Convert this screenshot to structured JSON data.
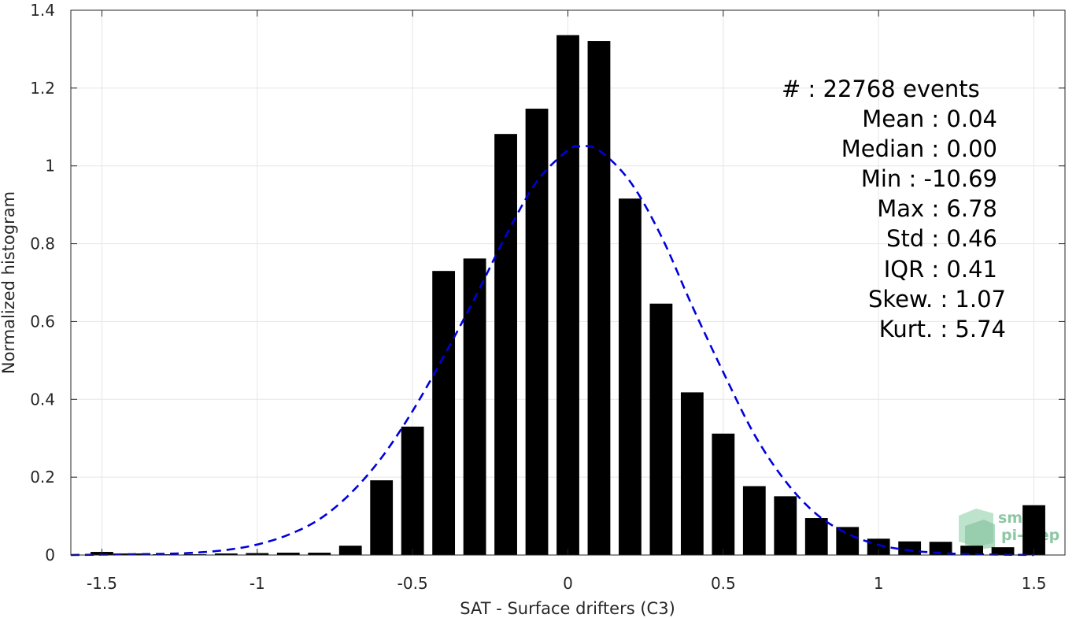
{
  "chart_data": {
    "type": "bar",
    "xlabel": "SAT - Surface drifters (C3)",
    "ylabel": "Normalized histogram",
    "xlim": [
      -1.6,
      1.6
    ],
    "ylim": [
      0,
      1.4
    ],
    "xticks": [
      "-1.5",
      "-1",
      "-0.5",
      "0",
      "0.5",
      "1",
      "1.5"
    ],
    "yticks": [
      "0",
      "0.2",
      "0.4",
      "0.6",
      "0.8",
      "1",
      "1.2",
      "1.4"
    ],
    "grid": true,
    "bar_color": "#000000",
    "curve_color": "#0000dd",
    "series": [
      {
        "type": "bar",
        "x": [
          -1.5,
          -1.4,
          -1.3,
          -1.2,
          -1.1,
          -1.0,
          -0.9,
          -0.8,
          -0.7,
          -0.6,
          -0.5,
          -0.4,
          -0.3,
          -0.2,
          -0.1,
          0.0,
          0.1,
          0.2,
          0.3,
          0.4,
          0.5,
          0.6,
          0.7,
          0.8,
          0.9,
          1.0,
          1.1,
          1.2,
          1.3,
          1.4,
          1.5
        ],
        "values": [
          0.008,
          0.004,
          0.002,
          0.002,
          0.004,
          0.005,
          0.006,
          0.006,
          0.024,
          0.192,
          0.33,
          0.73,
          0.762,
          1.082,
          1.147,
          1.336,
          1.321,
          0.916,
          0.646,
          0.418,
          0.312,
          0.177,
          0.151,
          0.095,
          0.072,
          0.042,
          0.035,
          0.034,
          0.024,
          0.02,
          0.128
        ]
      },
      {
        "type": "line",
        "style": "dashed",
        "x": [
          -1.6,
          -1.5,
          -1.4,
          -1.3,
          -1.2,
          -1.1,
          -1.0,
          -0.9,
          -0.8,
          -0.7,
          -0.6,
          -0.5,
          -0.4,
          -0.3,
          -0.2,
          -0.1,
          0.0,
          0.04,
          0.1,
          0.2,
          0.3,
          0.4,
          0.5,
          0.6,
          0.7,
          0.8,
          0.9,
          1.0,
          1.1,
          1.2,
          1.3,
          1.4,
          1.5
        ],
        "values": [
          0.0,
          0.001,
          0.002,
          0.003,
          0.006,
          0.013,
          0.027,
          0.052,
          0.092,
          0.158,
          0.25,
          0.37,
          0.51,
          0.66,
          0.82,
          0.96,
          1.04,
          1.05,
          1.04,
          0.96,
          0.82,
          0.64,
          0.47,
          0.31,
          0.19,
          0.105,
          0.055,
          0.026,
          0.012,
          0.005,
          0.002,
          0.001,
          0.0
        ]
      }
    ],
    "annotations": [
      "#  : 22768 events",
      "Mean : 0.04",
      "Median : 0.00",
      "Min : -10.69",
      "Max : 6.78",
      "Std : 0.46",
      "IQR : 0.41",
      "Skew. : 1.07",
      "Kurt. : 5.74"
    ],
    "logo": [
      "smos",
      "pi-mep"
    ]
  }
}
